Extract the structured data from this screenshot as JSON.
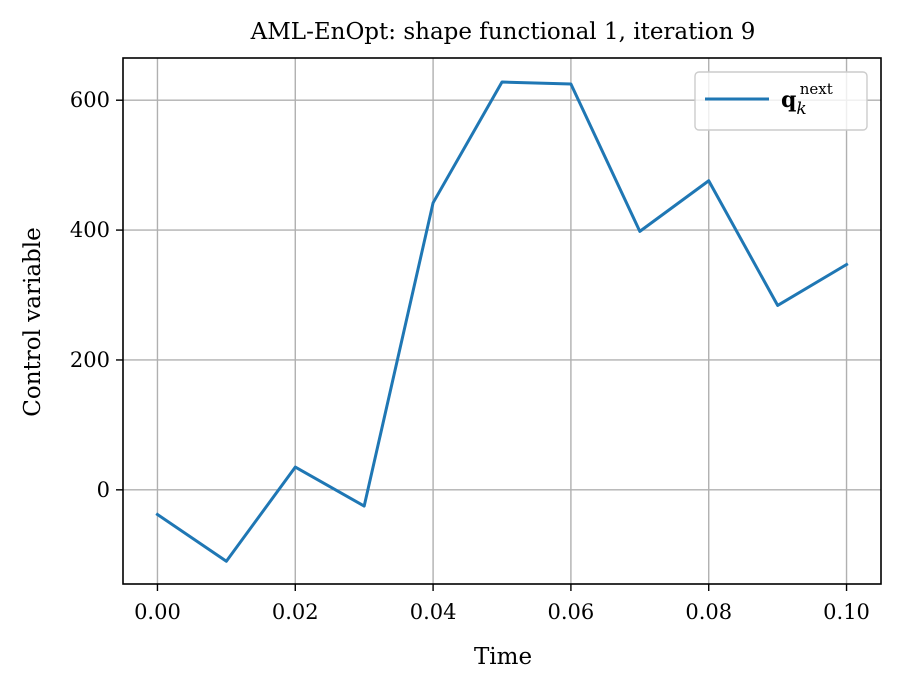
{
  "chart_data": {
    "type": "line",
    "title": "AML-EnOpt: shape functional 1, iteration 9",
    "xlabel": "Time",
    "ylabel": "Control variable",
    "xlim": [
      -0.005,
      0.105
    ],
    "ylim": [
      -145,
      665
    ],
    "x_ticks": [
      0.0,
      0.02,
      0.04,
      0.06,
      0.08,
      0.1
    ],
    "x_tick_labels": [
      "0.00",
      "0.02",
      "0.04",
      "0.06",
      "0.08",
      "0.10"
    ],
    "y_ticks": [
      0,
      200,
      400,
      600
    ],
    "y_tick_labels": [
      "0",
      "200",
      "400",
      "600"
    ],
    "grid": true,
    "legend_position": "top-right",
    "series": [
      {
        "name_main": "q",
        "name_sub": "k",
        "name_sup": "next",
        "color": "#1f77b4",
        "x": [
          0.0,
          0.01,
          0.02,
          0.03,
          0.04,
          0.05,
          0.06,
          0.07,
          0.08,
          0.09,
          0.1
        ],
        "values": [
          -38,
          -110,
          35,
          -25,
          442,
          628,
          625,
          398,
          476,
          284,
          347
        ]
      }
    ]
  }
}
